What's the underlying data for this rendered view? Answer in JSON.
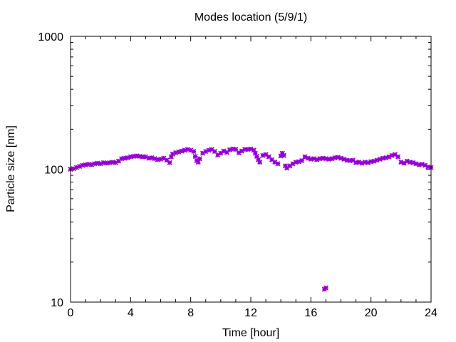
{
  "chart_data": {
    "type": "scatter",
    "title": "Modes location (5/9/1)",
    "xlabel": "Time [hour]",
    "ylabel": "Particle size [nm]",
    "xlim": [
      0,
      24
    ],
    "ylim": [
      10,
      1000
    ],
    "yscale": "log",
    "grid": false,
    "x_ticks": [
      0,
      4,
      8,
      12,
      16,
      20,
      24
    ],
    "x_tick_labels": [
      "0",
      "4",
      "8",
      "12",
      "16",
      "20",
      "24"
    ],
    "y_ticks": [
      10,
      100,
      1000
    ],
    "y_tick_labels": [
      "10",
      "100",
      "1000"
    ],
    "marker_color": "#9400d3",
    "series": [
      {
        "points": [
          [
            0.0,
            100
          ],
          [
            0.2,
            101
          ],
          [
            0.4,
            103
          ],
          [
            0.6,
            105
          ],
          [
            0.8,
            107
          ],
          [
            1.0,
            108
          ],
          [
            1.2,
            109
          ],
          [
            1.4,
            108
          ],
          [
            1.6,
            110
          ],
          [
            1.8,
            111
          ],
          [
            2.0,
            110
          ],
          [
            2.2,
            112
          ],
          [
            2.4,
            111
          ],
          [
            2.6,
            112
          ],
          [
            2.8,
            113
          ],
          [
            3.0,
            112
          ],
          [
            3.2,
            115
          ],
          [
            3.4,
            120
          ],
          [
            3.6,
            121
          ],
          [
            3.8,
            122
          ],
          [
            4.0,
            124
          ],
          [
            4.2,
            125
          ],
          [
            4.4,
            126
          ],
          [
            4.6,
            125
          ],
          [
            4.8,
            124
          ],
          [
            5.0,
            124
          ],
          [
            5.2,
            121
          ],
          [
            5.4,
            122
          ],
          [
            5.6,
            120
          ],
          [
            5.8,
            118
          ],
          [
            6.0,
            119
          ],
          [
            6.2,
            121
          ],
          [
            6.4,
            117
          ],
          [
            6.6,
            112
          ],
          [
            6.7,
            124
          ],
          [
            6.8,
            130
          ],
          [
            7.0,
            133
          ],
          [
            7.2,
            135
          ],
          [
            7.4,
            137
          ],
          [
            7.6,
            139
          ],
          [
            7.8,
            141
          ],
          [
            8.0,
            139
          ],
          [
            8.2,
            136
          ],
          [
            8.3,
            125
          ],
          [
            8.4,
            116
          ],
          [
            8.5,
            113
          ],
          [
            8.6,
            120
          ],
          [
            8.8,
            132
          ],
          [
            9.0,
            136
          ],
          [
            9.2,
            139
          ],
          [
            9.4,
            141
          ],
          [
            9.6,
            136
          ],
          [
            9.8,
            128
          ],
          [
            10.0,
            132
          ],
          [
            10.2,
            137
          ],
          [
            10.4,
            134
          ],
          [
            10.6,
            140
          ],
          [
            10.8,
            142
          ],
          [
            11.0,
            141
          ],
          [
            11.2,
            133
          ],
          [
            11.4,
            137
          ],
          [
            11.6,
            141
          ],
          [
            11.8,
            141
          ],
          [
            12.0,
            142
          ],
          [
            12.2,
            139
          ],
          [
            12.3,
            132
          ],
          [
            12.4,
            125
          ],
          [
            12.5,
            118
          ],
          [
            12.6,
            113
          ],
          [
            12.8,
            127
          ],
          [
            13.0,
            129
          ],
          [
            13.2,
            124
          ],
          [
            13.4,
            118
          ],
          [
            13.6,
            113
          ],
          [
            13.8,
            110
          ],
          [
            14.0,
            126
          ],
          [
            14.1,
            132
          ],
          [
            14.2,
            127
          ],
          [
            14.3,
            106
          ],
          [
            14.4,
            102
          ],
          [
            14.6,
            106
          ],
          [
            14.8,
            110
          ],
          [
            15.0,
            113
          ],
          [
            15.2,
            114
          ],
          [
            15.4,
            116
          ],
          [
            15.6,
            124
          ],
          [
            15.8,
            121
          ],
          [
            16.0,
            119
          ],
          [
            16.2,
            120
          ],
          [
            16.4,
            118
          ],
          [
            16.6,
            120
          ],
          [
            16.8,
            121
          ],
          [
            17.0,
            120
          ],
          [
            17.2,
            119
          ],
          [
            17.4,
            120
          ],
          [
            17.6,
            122
          ],
          [
            17.8,
            123
          ],
          [
            18.0,
            121
          ],
          [
            18.2,
            119
          ],
          [
            18.4,
            117
          ],
          [
            18.6,
            116
          ],
          [
            18.8,
            117
          ],
          [
            19.0,
            112
          ],
          [
            19.2,
            113
          ],
          [
            19.4,
            111
          ],
          [
            19.6,
            113
          ],
          [
            19.8,
            112
          ],
          [
            20.0,
            114
          ],
          [
            20.2,
            115
          ],
          [
            20.4,
            117
          ],
          [
            20.6,
            119
          ],
          [
            20.8,
            121
          ],
          [
            21.0,
            122
          ],
          [
            21.2,
            124
          ],
          [
            21.4,
            127
          ],
          [
            21.6,
            129
          ],
          [
            21.8,
            124
          ],
          [
            22.0,
            113
          ],
          [
            22.2,
            111
          ],
          [
            22.4,
            115
          ],
          [
            22.6,
            113
          ],
          [
            22.8,
            112
          ],
          [
            23.0,
            110
          ],
          [
            23.2,
            108
          ],
          [
            23.4,
            109
          ],
          [
            23.6,
            107
          ],
          [
            23.8,
            104
          ],
          [
            24.0,
            103
          ],
          [
            16.9,
            12.5
          ],
          [
            17.0,
            12.8
          ]
        ]
      }
    ]
  }
}
